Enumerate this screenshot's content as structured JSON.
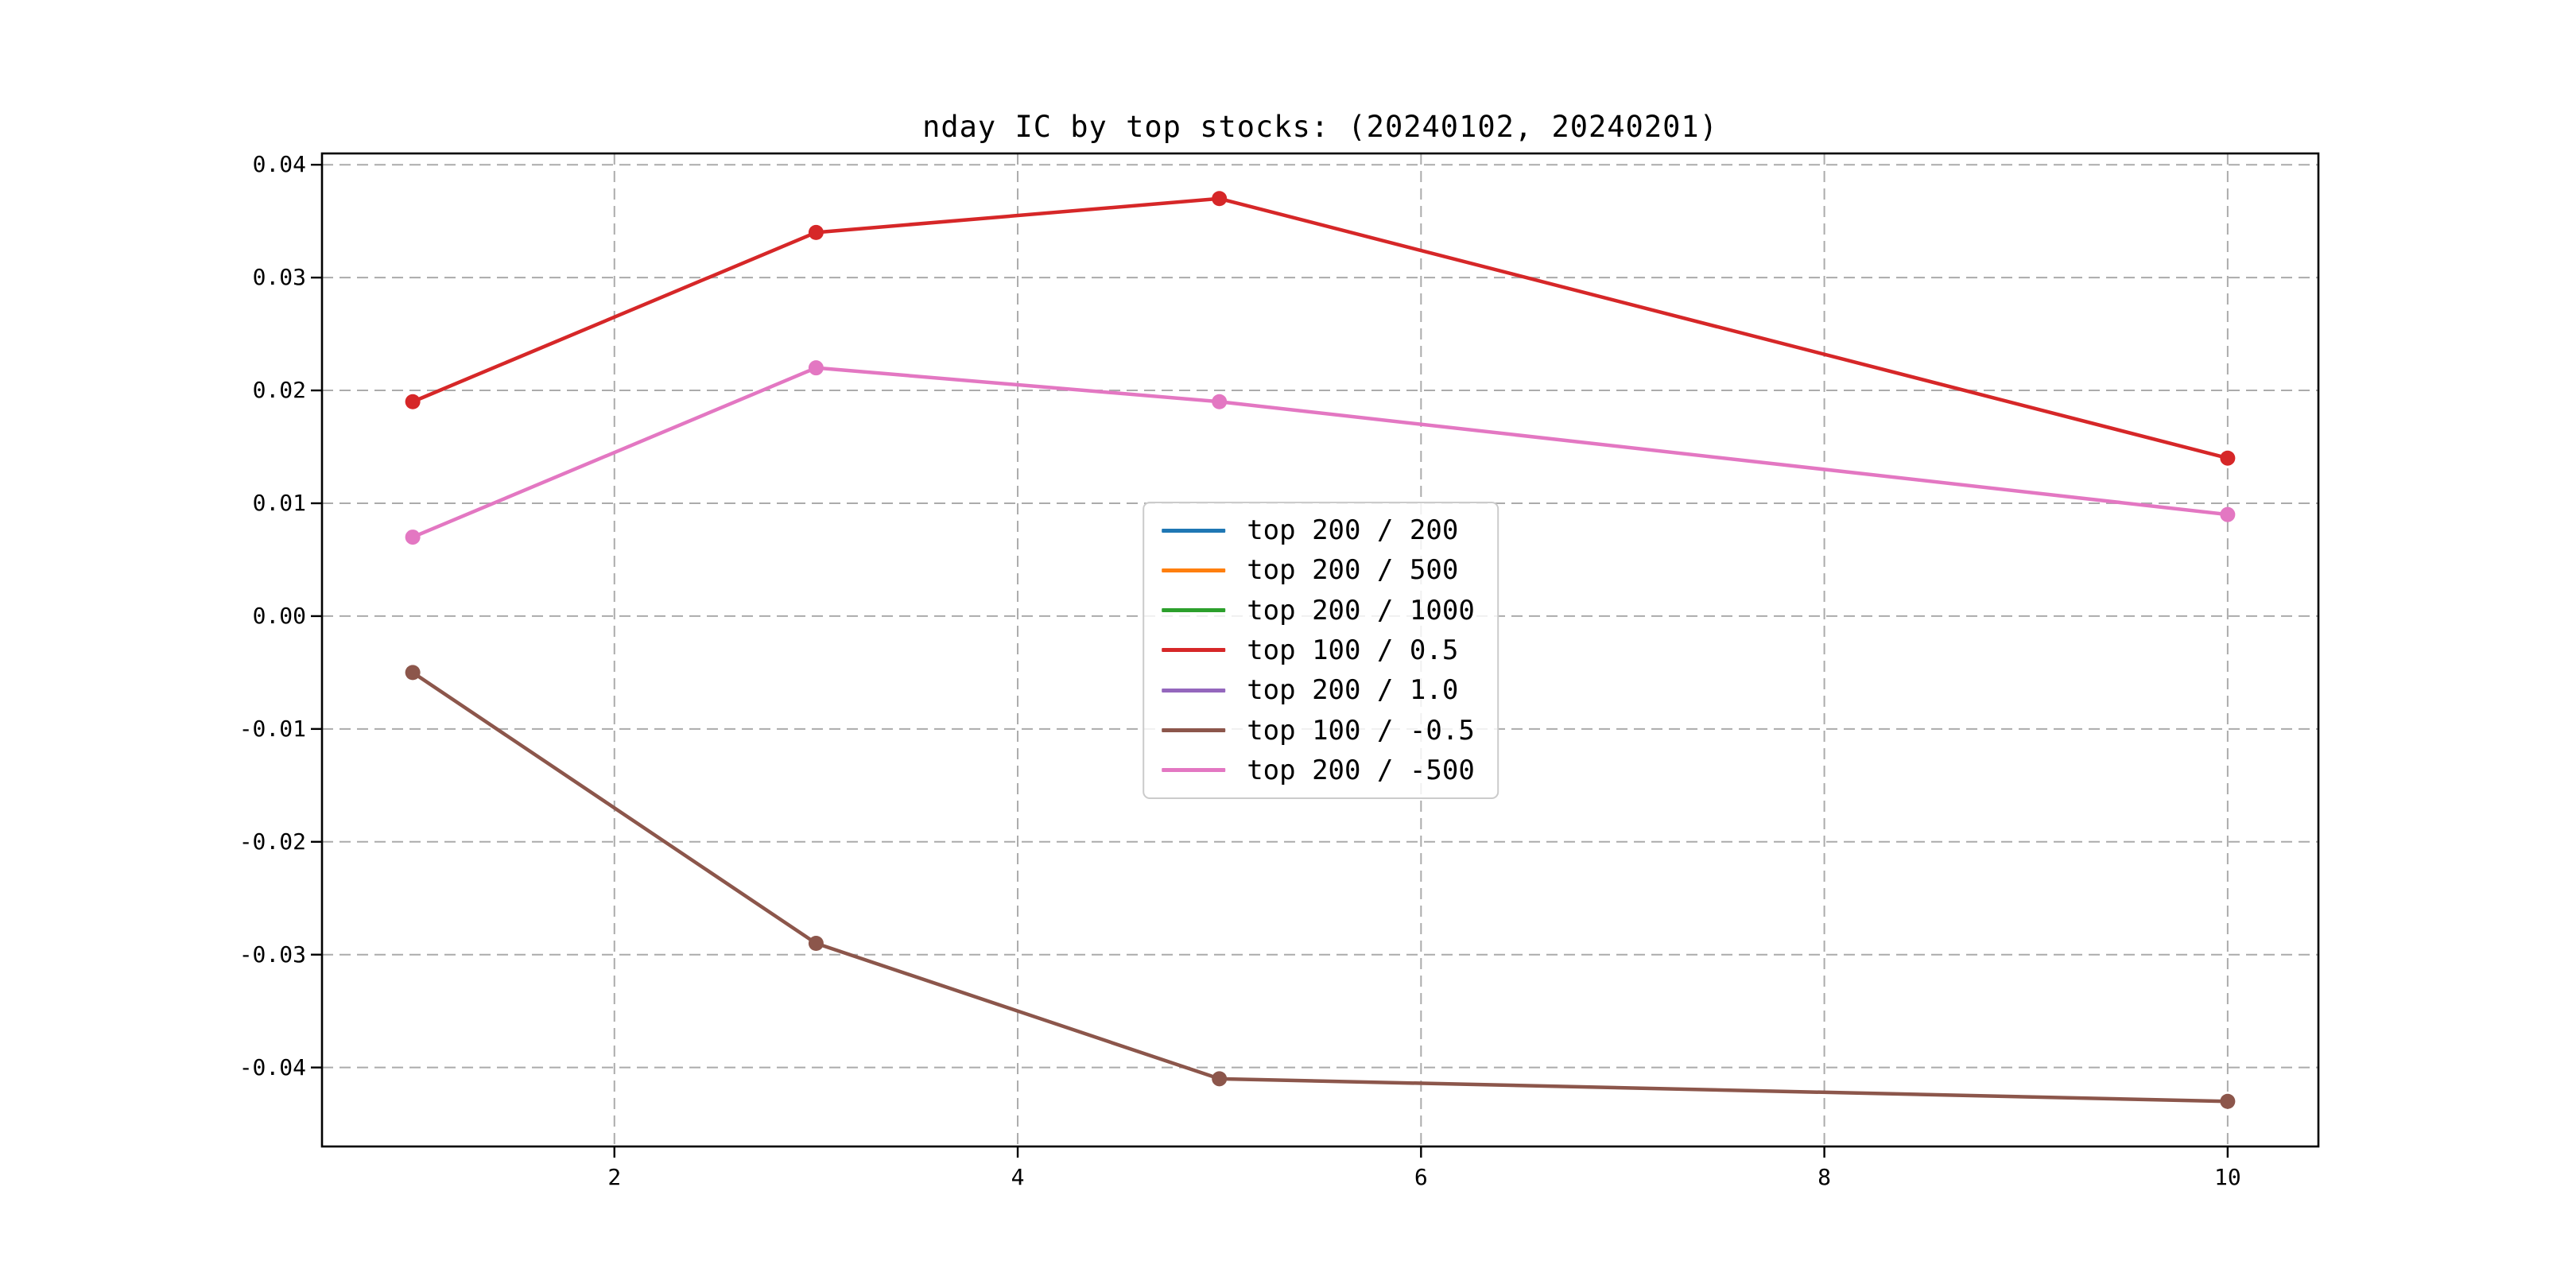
{
  "chart_data": {
    "type": "line",
    "title": "nday IC by top stocks: (20240102, 20240201)",
    "xlabel": "",
    "ylabel": "",
    "xlim": [
      0.55,
      10.45
    ],
    "ylim": [
      -0.047,
      0.041
    ],
    "grid": true,
    "grid_color": "#ababab",
    "grid_style": "dashed",
    "legend_position": "center",
    "x_ticks": [
      {
        "v": 2,
        "label": "2"
      },
      {
        "v": 4,
        "label": "4"
      },
      {
        "v": 6,
        "label": "6"
      },
      {
        "v": 8,
        "label": "8"
      },
      {
        "v": 10,
        "label": "10"
      }
    ],
    "y_ticks": [
      {
        "v": 0.04,
        "label": "0.04"
      },
      {
        "v": 0.03,
        "label": "0.03"
      },
      {
        "v": 0.02,
        "label": "0.02"
      },
      {
        "v": 0.01,
        "label": "0.01"
      },
      {
        "v": 0.0,
        "label": "0.00"
      },
      {
        "v": -0.01,
        "label": "-0.01"
      },
      {
        "v": -0.02,
        "label": "-0.02"
      },
      {
        "v": -0.03,
        "label": "-0.03"
      },
      {
        "v": -0.04,
        "label": "-0.04"
      }
    ],
    "x": [
      1,
      3,
      5,
      10
    ],
    "series": [
      {
        "name": "top 200 / 200",
        "color": "#1f77b4",
        "marker": "o",
        "visible_in_plot": false,
        "values": null
      },
      {
        "name": "top 200 / 500",
        "color": "#ff7f0e",
        "marker": "o",
        "visible_in_plot": false,
        "values": null
      },
      {
        "name": "top 200 / 1000",
        "color": "#2ca02c",
        "marker": "o",
        "visible_in_plot": false,
        "values": null
      },
      {
        "name": "top 100 / 0.5",
        "color": "#d62728",
        "marker": "o",
        "visible_in_plot": true,
        "values": [
          0.019,
          0.034,
          0.037,
          0.014
        ]
      },
      {
        "name": "top 200 / 1.0",
        "color": "#9467bd",
        "marker": "o",
        "visible_in_plot": false,
        "values": null
      },
      {
        "name": "top 100 / -0.5",
        "color": "#8c564b",
        "marker": "o",
        "visible_in_plot": true,
        "values": [
          -0.005,
          -0.029,
          -0.041,
          -0.043
        ]
      },
      {
        "name": "top 200 / -500",
        "color": "#e377c2",
        "marker": "o",
        "visible_in_plot": true,
        "values": [
          0.007,
          0.022,
          0.019,
          0.009
        ]
      }
    ]
  }
}
